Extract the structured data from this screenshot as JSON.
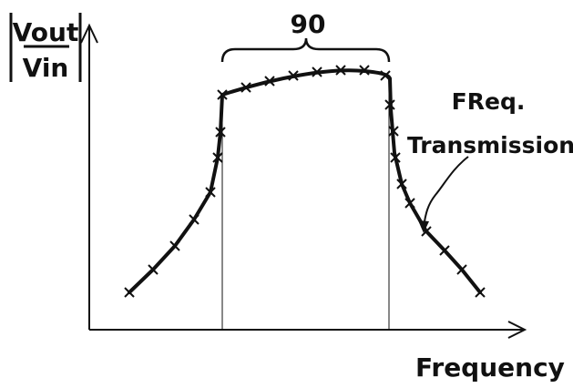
{
  "figure": {
    "band_label": "90",
    "curve_label_line1": "FReq.",
    "curve_label_line2": "Transmission"
  },
  "chart_data": {
    "type": "line",
    "title": "",
    "xlabel": "Frequency",
    "ylabel_numerator": "Vout",
    "ylabel_denominator": "Vin",
    "grid": false,
    "legend": "none",
    "ticks": "none",
    "series": [
      {
        "values_description": "qualitative band-pass response (no numeric scale printed)",
        "points": [
          [
            0.0,
            0.0
          ],
          [
            0.06,
            0.07
          ],
          [
            0.14,
            0.17
          ],
          [
            0.2,
            0.28
          ],
          [
            0.23,
            0.37
          ],
          [
            0.25,
            0.52
          ],
          [
            0.26,
            0.68
          ],
          [
            0.27,
            0.85
          ],
          [
            0.32,
            0.89
          ],
          [
            0.37,
            0.92
          ],
          [
            0.43,
            0.95
          ],
          [
            0.5,
            0.97
          ],
          [
            0.57,
            0.98
          ],
          [
            0.64,
            0.98
          ],
          [
            0.69,
            0.97
          ],
          [
            0.71,
            0.96
          ],
          [
            0.72,
            0.87
          ],
          [
            0.73,
            0.73
          ],
          [
            0.75,
            0.55
          ],
          [
            0.78,
            0.43
          ],
          [
            0.84,
            0.3
          ],
          [
            0.92,
            0.17
          ],
          [
            1.0,
            0.05
          ]
        ],
        "markers": "x"
      }
    ],
    "annotations": [
      {
        "text": "90",
        "kind": "brace over passband"
      },
      {
        "text": "FReq. Transmission",
        "kind": "leader arrow to curve"
      }
    ]
  }
}
